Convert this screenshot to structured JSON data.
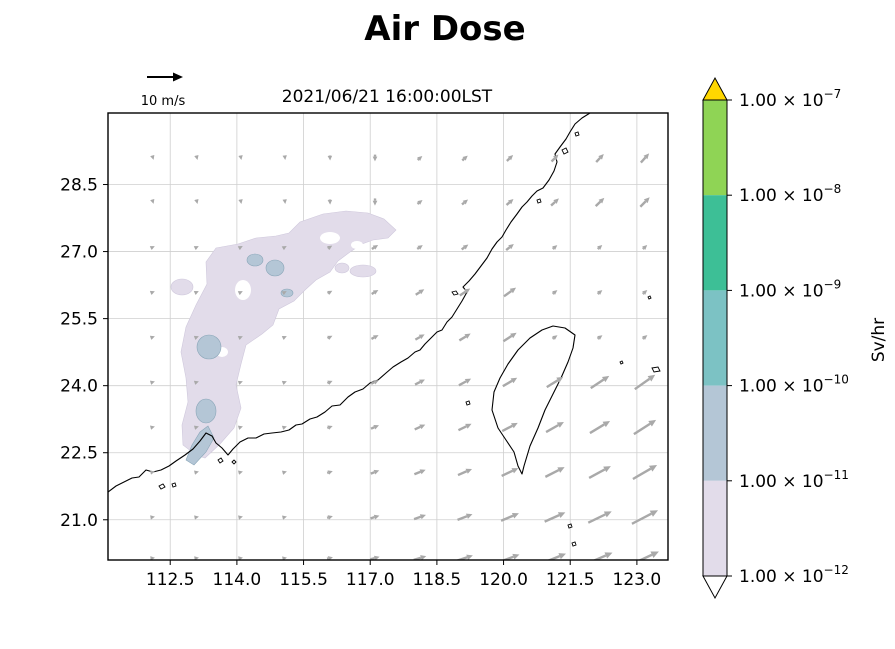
{
  "title": "Air Dose",
  "timestamp": "2021/06/21 16:00:00LST",
  "wind_key_label": "10 m/s",
  "colorbar": {
    "label": "Sv/hr",
    "levels": [
      {
        "mantissa": "1.00 × 10",
        "exponent": "−7"
      },
      {
        "mantissa": "1.00 × 10",
        "exponent": "−8"
      },
      {
        "mantissa": "1.00 × 10",
        "exponent": "−9"
      },
      {
        "mantissa": "1.00 × 10",
        "exponent": "−10"
      },
      {
        "mantissa": "1.00 × 10",
        "exponent": "−11"
      },
      {
        "mantissa": "1.00 × 10",
        "exponent": "−12"
      }
    ],
    "colors": [
      "#ffd700",
      "#8fd455",
      "#3dbf96",
      "#7cc2c4",
      "#b4c6d6",
      "#e2dcea"
    ]
  },
  "map": {
    "x_range": [
      111.1,
      123.7
    ],
    "y_range": [
      20.1,
      30.1
    ],
    "x_ticks": [
      {
        "value": 112.5,
        "label": "112.5"
      },
      {
        "value": 114.0,
        "label": "114.0"
      },
      {
        "value": 115.5,
        "label": "115.5"
      },
      {
        "value": 117.0,
        "label": "117.0"
      },
      {
        "value": 118.5,
        "label": "118.5"
      },
      {
        "value": 120.0,
        "label": "120.0"
      },
      {
        "value": 121.5,
        "label": "121.5"
      },
      {
        "value": 123.0,
        "label": "123.0"
      }
    ],
    "y_ticks": [
      {
        "value": 21.0,
        "label": "21.0"
      },
      {
        "value": 22.5,
        "label": "22.5"
      },
      {
        "value": 24.0,
        "label": "24.0"
      },
      {
        "value": 25.5,
        "label": "25.5"
      },
      {
        "value": 27.0,
        "label": "27.0"
      },
      {
        "value": 28.5,
        "label": "28.5"
      }
    ],
    "grid": true,
    "plume_color": "#e2dcea",
    "plume_core_color": "#b4c6d6"
  }
}
